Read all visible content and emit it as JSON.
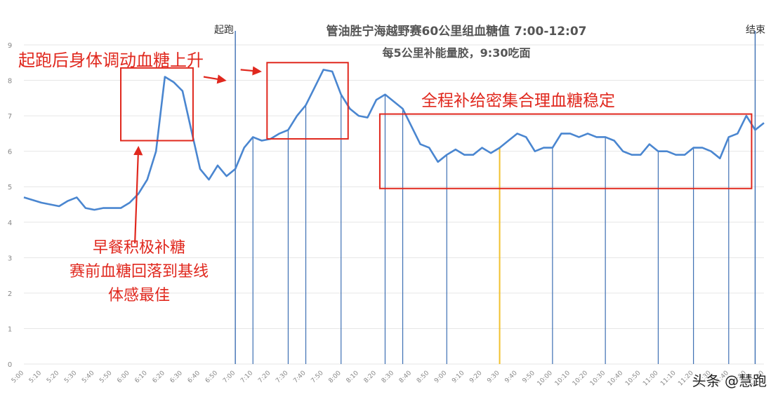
{
  "titles": {
    "line1": "管油胜宁海越野赛60公里组血糖值 7:00-12:07",
    "line2": "每5公里补能量胶，9:30吃面"
  },
  "markers": {
    "start": "起跑",
    "end": "结束"
  },
  "annotations": {
    "rise": "起跑后身体调动血糖上升",
    "stable": "全程补给密集合理血糖稳定",
    "breakfast": [
      "早餐积极补糖",
      "赛前血糖回落到基线",
      "体感最佳"
    ]
  },
  "watermark": "头条 @慧跑",
  "colors": {
    "line": "#4a86d0",
    "vline": "#3d6fb3",
    "noodle_line": "#f2c12e",
    "annotation": "#e0281e"
  },
  "chart_data": {
    "type": "line",
    "title": "管油胜宁海越野赛60公里组血糖值 7:00-12:07",
    "ylim": [
      0,
      9
    ],
    "y_ticks": [
      "0",
      "1",
      "2",
      "3",
      "4",
      "5",
      "6",
      "7",
      "8",
      "9"
    ],
    "x_ticks": [
      "5:00",
      "5:10",
      "5:20",
      "5:30",
      "5:40",
      "5:50",
      "6:00",
      "6:10",
      "6:20",
      "6:30",
      "6:40",
      "6:50",
      "7:00",
      "7:10",
      "7:20",
      "7:30",
      "7:40",
      "7:50",
      "8:00",
      "8:10",
      "8:20",
      "8:30",
      "8:40",
      "8:50",
      "9:00",
      "9:10",
      "9:20",
      "9:30",
      "9:40",
      "9:50",
      "10:00",
      "10:10",
      "10:20",
      "10:30",
      "10:40",
      "10:50",
      "11:00",
      "11:10",
      "11:20",
      "11:30",
      "11:40",
      "11:50",
      "12:00"
    ],
    "x_range": [
      0,
      420
    ],
    "series": [
      {
        "x": [
          0,
          10,
          20,
          25,
          30,
          35,
          40,
          45,
          50,
          55,
          60,
          65,
          70,
          75,
          80,
          85,
          90,
          95,
          100,
          105,
          110,
          115,
          120,
          125,
          130,
          135,
          140,
          145,
          150,
          155,
          160,
          165,
          170,
          175,
          180,
          185,
          190,
          195,
          200,
          205,
          210,
          215,
          220,
          225,
          230,
          235,
          240,
          245,
          250,
          255,
          260,
          265,
          270,
          275,
          280,
          285,
          290,
          295,
          300,
          305,
          310,
          315,
          320,
          325,
          330,
          335,
          340,
          345,
          350,
          355,
          360,
          365,
          370,
          375,
          380,
          385,
          390,
          395,
          400,
          405,
          410,
          415,
          420
        ],
        "y": [
          4.7,
          4.55,
          4.45,
          4.6,
          4.7,
          4.4,
          4.35,
          4.4,
          4.4,
          4.4,
          4.55,
          4.8,
          5.2,
          6.0,
          8.1,
          7.95,
          7.7,
          6.6,
          5.5,
          5.2,
          5.6,
          5.3,
          5.5,
          6.1,
          6.4,
          6.3,
          6.35,
          6.5,
          6.6,
          7.0,
          7.3,
          7.8,
          8.3,
          8.25,
          7.6,
          7.2,
          7.0,
          6.95,
          7.45,
          7.6,
          7.4,
          7.2,
          6.7,
          6.2,
          6.1,
          5.7,
          5.9,
          6.05,
          5.9,
          5.9,
          6.1,
          5.95,
          6.1,
          6.3,
          6.5,
          6.4,
          6.0,
          6.1,
          6.1,
          6.5,
          6.5,
          6.4,
          6.5,
          6.4,
          6.4,
          6.3,
          6.0,
          5.9,
          5.9,
          6.2,
          6.0,
          6.0,
          5.9,
          5.9,
          6.1,
          6.1,
          6.0,
          5.8,
          6.4,
          6.5,
          7.0,
          6.6,
          6.8
        ]
      }
    ],
    "start_time_x": 120,
    "end_time_x": 415,
    "noodle_time_x": 270,
    "marker_lines_x": [
      120,
      130,
      150,
      160,
      180,
      205,
      215,
      240,
      270,
      300,
      330,
      360,
      380,
      400
    ]
  }
}
